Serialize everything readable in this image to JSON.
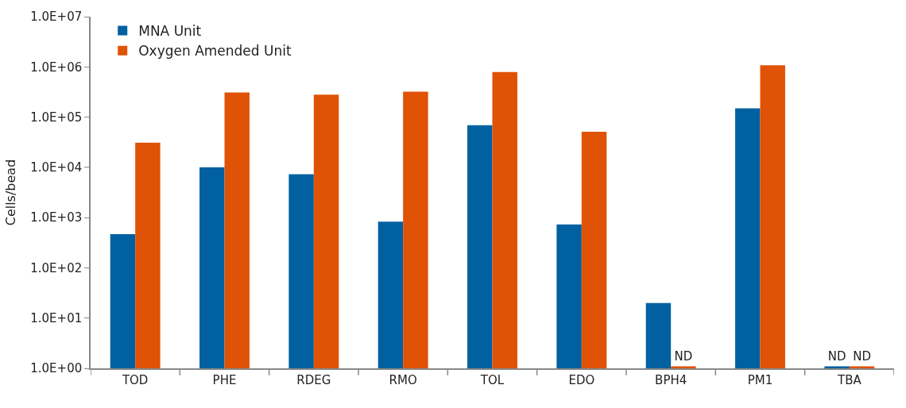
{
  "chart_data": {
    "type": "bar",
    "ylabel": "Cells/bead",
    "categories": [
      "TOD",
      "PHE",
      "RDEG",
      "RMO",
      "TOL",
      "EDO",
      "BPH4",
      "PM1",
      "TBA"
    ],
    "series": [
      {
        "name": "MNA Unit",
        "color": "#0060a0",
        "values": [
          470,
          10000,
          7300,
          830,
          69000,
          730,
          20,
          150000,
          1.1
        ],
        "value_labels": [
          null,
          null,
          null,
          null,
          null,
          null,
          null,
          null,
          "ND"
        ]
      },
      {
        "name": "Oxygen Amended Unit",
        "color": "#e05206",
        "values": [
          31000,
          310000,
          280000,
          320000,
          790000,
          51000,
          1.1,
          1080000,
          1.1
        ],
        "value_labels": [
          null,
          null,
          null,
          null,
          null,
          null,
          "ND",
          null,
          "ND"
        ]
      }
    ],
    "log": "y",
    "ylim": [
      1,
      10000000
    ],
    "yticks": [
      {
        "value": 1,
        "label": "1.0E+00"
      },
      {
        "value": 10,
        "label": "1.0E+01"
      },
      {
        "value": 100,
        "label": "1.0E+02"
      },
      {
        "value": 1000,
        "label": "1.0E+03"
      },
      {
        "value": 10000,
        "label": "1.0E+04"
      },
      {
        "value": 100000,
        "label": "1.0E+05"
      },
      {
        "value": 1000000,
        "label": "1.0E+06"
      },
      {
        "value": 10000000,
        "label": "1.0E+07"
      }
    ],
    "legend": "top left"
  }
}
